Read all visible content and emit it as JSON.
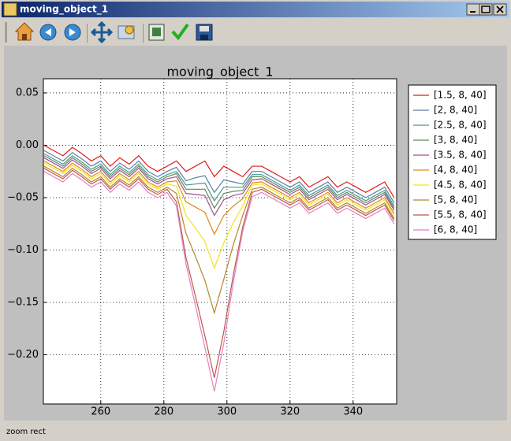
{
  "window_title": "moving_object_1",
  "status_text": "zoom rect",
  "chart_data": {
    "type": "line",
    "title": "moving_object_1",
    "x": [
      242,
      245,
      248,
      251,
      254,
      257,
      260,
      263,
      266,
      269,
      272,
      275,
      278,
      281,
      284,
      287,
      290,
      293,
      296,
      299,
      302,
      305,
      308,
      311,
      314,
      317,
      320,
      323,
      326,
      329,
      332,
      335,
      338,
      341,
      344,
      347,
      350,
      353
    ],
    "xlim": [
      241.8,
      353.8
    ],
    "xticks": [
      260,
      280,
      300,
      320,
      340
    ],
    "ylim": [
      -0.247,
      0.0635
    ],
    "yticks": [
      {
        "value": 0.05,
        "label": "0.05"
      },
      {
        "value": 0,
        "label": "0.00"
      },
      {
        "value": -0.05,
        "label": "−0.05"
      },
      {
        "value": -0.1,
        "label": "−0.10"
      },
      {
        "value": -0.15,
        "label": "−0.15"
      },
      {
        "value": -0.2,
        "label": "−0.20"
      }
    ],
    "grid": true,
    "legend_location": "outside right",
    "series": [
      {
        "name": "[1.5, 8, 40]",
        "color": "#e41a1c",
        "values": [
          0,
          -0.005,
          -0.01,
          -0.002,
          -0.008,
          -0.015,
          -0.01,
          -0.02,
          -0.012,
          -0.018,
          -0.01,
          -0.02,
          -0.025,
          -0.02,
          -0.015,
          -0.025,
          -0.02,
          -0.015,
          -0.03,
          -0.02,
          -0.025,
          -0.03,
          -0.02,
          -0.02,
          -0.025,
          -0.03,
          -0.035,
          -0.03,
          -0.04,
          -0.035,
          -0.03,
          -0.04,
          -0.035,
          -0.04,
          -0.045,
          -0.04,
          -0.035,
          -0.05
        ]
      },
      {
        "name": "[2, 8, 40]",
        "color": "#5b7fa6",
        "values": [
          -0.005,
          -0.01,
          -0.015,
          -0.007,
          -0.013,
          -0.02,
          -0.015,
          -0.025,
          -0.017,
          -0.023,
          -0.015,
          -0.025,
          -0.03,
          -0.025,
          -0.021,
          -0.034,
          -0.031,
          -0.029,
          -0.045,
          -0.033,
          -0.035,
          -0.037,
          -0.025,
          -0.025,
          -0.03,
          -0.035,
          -0.04,
          -0.035,
          -0.045,
          -0.04,
          -0.035,
          -0.045,
          -0.04,
          -0.045,
          -0.05,
          -0.045,
          -0.04,
          -0.055
        ]
      },
      {
        "name": "[2.5, 8, 40]",
        "color": "#4a9a8a",
        "values": [
          -0.008,
          -0.013,
          -0.018,
          -0.01,
          -0.016,
          -0.023,
          -0.018,
          -0.028,
          -0.02,
          -0.026,
          -0.018,
          -0.028,
          -0.033,
          -0.028,
          -0.025,
          -0.038,
          -0.037,
          -0.036,
          -0.053,
          -0.04,
          -0.04,
          -0.04,
          -0.028,
          -0.028,
          -0.033,
          -0.038,
          -0.043,
          -0.038,
          -0.048,
          -0.043,
          -0.038,
          -0.048,
          -0.043,
          -0.048,
          -0.053,
          -0.048,
          -0.043,
          -0.058
        ]
      },
      {
        "name": "[3, 8, 40]",
        "color": "#5f8a5f",
        "values": [
          -0.01,
          -0.015,
          -0.02,
          -0.012,
          -0.018,
          -0.025,
          -0.02,
          -0.03,
          -0.022,
          -0.028,
          -0.02,
          -0.03,
          -0.035,
          -0.03,
          -0.027,
          -0.042,
          -0.042,
          -0.042,
          -0.06,
          -0.046,
          -0.044,
          -0.043,
          -0.03,
          -0.03,
          -0.035,
          -0.04,
          -0.045,
          -0.04,
          -0.05,
          -0.045,
          -0.04,
          -0.05,
          -0.045,
          -0.05,
          -0.055,
          -0.05,
          -0.045,
          -0.06
        ]
      },
      {
        "name": "[3.5, 8, 40]",
        "color": "#a0508f",
        "values": [
          -0.012,
          -0.017,
          -0.022,
          -0.014,
          -0.02,
          -0.027,
          -0.022,
          -0.032,
          -0.024,
          -0.03,
          -0.022,
          -0.032,
          -0.037,
          -0.032,
          -0.03,
          -0.046,
          -0.047,
          -0.048,
          -0.067,
          -0.052,
          -0.048,
          -0.046,
          -0.033,
          -0.032,
          -0.037,
          -0.042,
          -0.047,
          -0.042,
          -0.052,
          -0.047,
          -0.042,
          -0.052,
          -0.047,
          -0.052,
          -0.057,
          -0.052,
          -0.047,
          -0.062
        ]
      },
      {
        "name": "[4, 8, 40]",
        "color": "#e08a1e",
        "values": [
          -0.015,
          -0.02,
          -0.025,
          -0.017,
          -0.023,
          -0.03,
          -0.025,
          -0.035,
          -0.027,
          -0.033,
          -0.025,
          -0.035,
          -0.04,
          -0.035,
          -0.034,
          -0.054,
          -0.059,
          -0.064,
          -0.085,
          -0.067,
          -0.058,
          -0.051,
          -0.036,
          -0.035,
          -0.04,
          -0.045,
          -0.05,
          -0.045,
          -0.055,
          -0.05,
          -0.045,
          -0.055,
          -0.05,
          -0.055,
          -0.06,
          -0.055,
          -0.05,
          -0.065
        ]
      },
      {
        "name": "[4.5, 8, 40]",
        "color": "#f2e31c",
        "values": [
          -0.017,
          -0.022,
          -0.027,
          -0.019,
          -0.025,
          -0.032,
          -0.027,
          -0.037,
          -0.029,
          -0.035,
          -0.027,
          -0.037,
          -0.042,
          -0.037,
          -0.039,
          -0.067,
          -0.079,
          -0.092,
          -0.117,
          -0.093,
          -0.074,
          -0.058,
          -0.038,
          -0.037,
          -0.042,
          -0.047,
          -0.052,
          -0.047,
          -0.057,
          -0.052,
          -0.047,
          -0.057,
          -0.052,
          -0.057,
          -0.062,
          -0.057,
          -0.052,
          -0.067
        ]
      },
      {
        "name": "[5, 8, 40]",
        "color": "#b5862a",
        "values": [
          -0.02,
          -0.025,
          -0.03,
          -0.022,
          -0.028,
          -0.035,
          -0.03,
          -0.04,
          -0.032,
          -0.038,
          -0.03,
          -0.04,
          -0.045,
          -0.04,
          -0.046,
          -0.084,
          -0.106,
          -0.129,
          -0.16,
          -0.128,
          -0.095,
          -0.067,
          -0.042,
          -0.04,
          -0.045,
          -0.05,
          -0.055,
          -0.05,
          -0.06,
          -0.055,
          -0.05,
          -0.06,
          -0.055,
          -0.06,
          -0.065,
          -0.06,
          -0.055,
          -0.07
        ]
      },
      {
        "name": "[5.5, 8, 40]",
        "color": "#c0564a",
        "values": [
          -0.022,
          -0.027,
          -0.032,
          -0.024,
          -0.03,
          -0.037,
          -0.032,
          -0.042,
          -0.034,
          -0.04,
          -0.032,
          -0.042,
          -0.047,
          -0.042,
          -0.054,
          -0.107,
          -0.144,
          -0.182,
          -0.222,
          -0.178,
          -0.124,
          -0.078,
          -0.045,
          -0.042,
          -0.047,
          -0.052,
          -0.057,
          -0.052,
          -0.062,
          -0.057,
          -0.052,
          -0.062,
          -0.057,
          -0.062,
          -0.067,
          -0.062,
          -0.057,
          -0.072
        ]
      },
      {
        "name": "[6, 8, 40]",
        "color": "#e57fc0",
        "values": [
          -0.025,
          -0.03,
          -0.035,
          -0.027,
          -0.033,
          -0.04,
          -0.035,
          -0.045,
          -0.037,
          -0.043,
          -0.035,
          -0.045,
          -0.05,
          -0.045,
          -0.058,
          -0.113,
          -0.153,
          -0.193,
          -0.235,
          -0.189,
          -0.131,
          -0.082,
          -0.049,
          -0.045,
          -0.05,
          -0.055,
          -0.06,
          -0.055,
          -0.065,
          -0.06,
          -0.055,
          -0.065,
          -0.06,
          -0.065,
          -0.07,
          -0.065,
          -0.06,
          -0.075
        ]
      }
    ]
  }
}
